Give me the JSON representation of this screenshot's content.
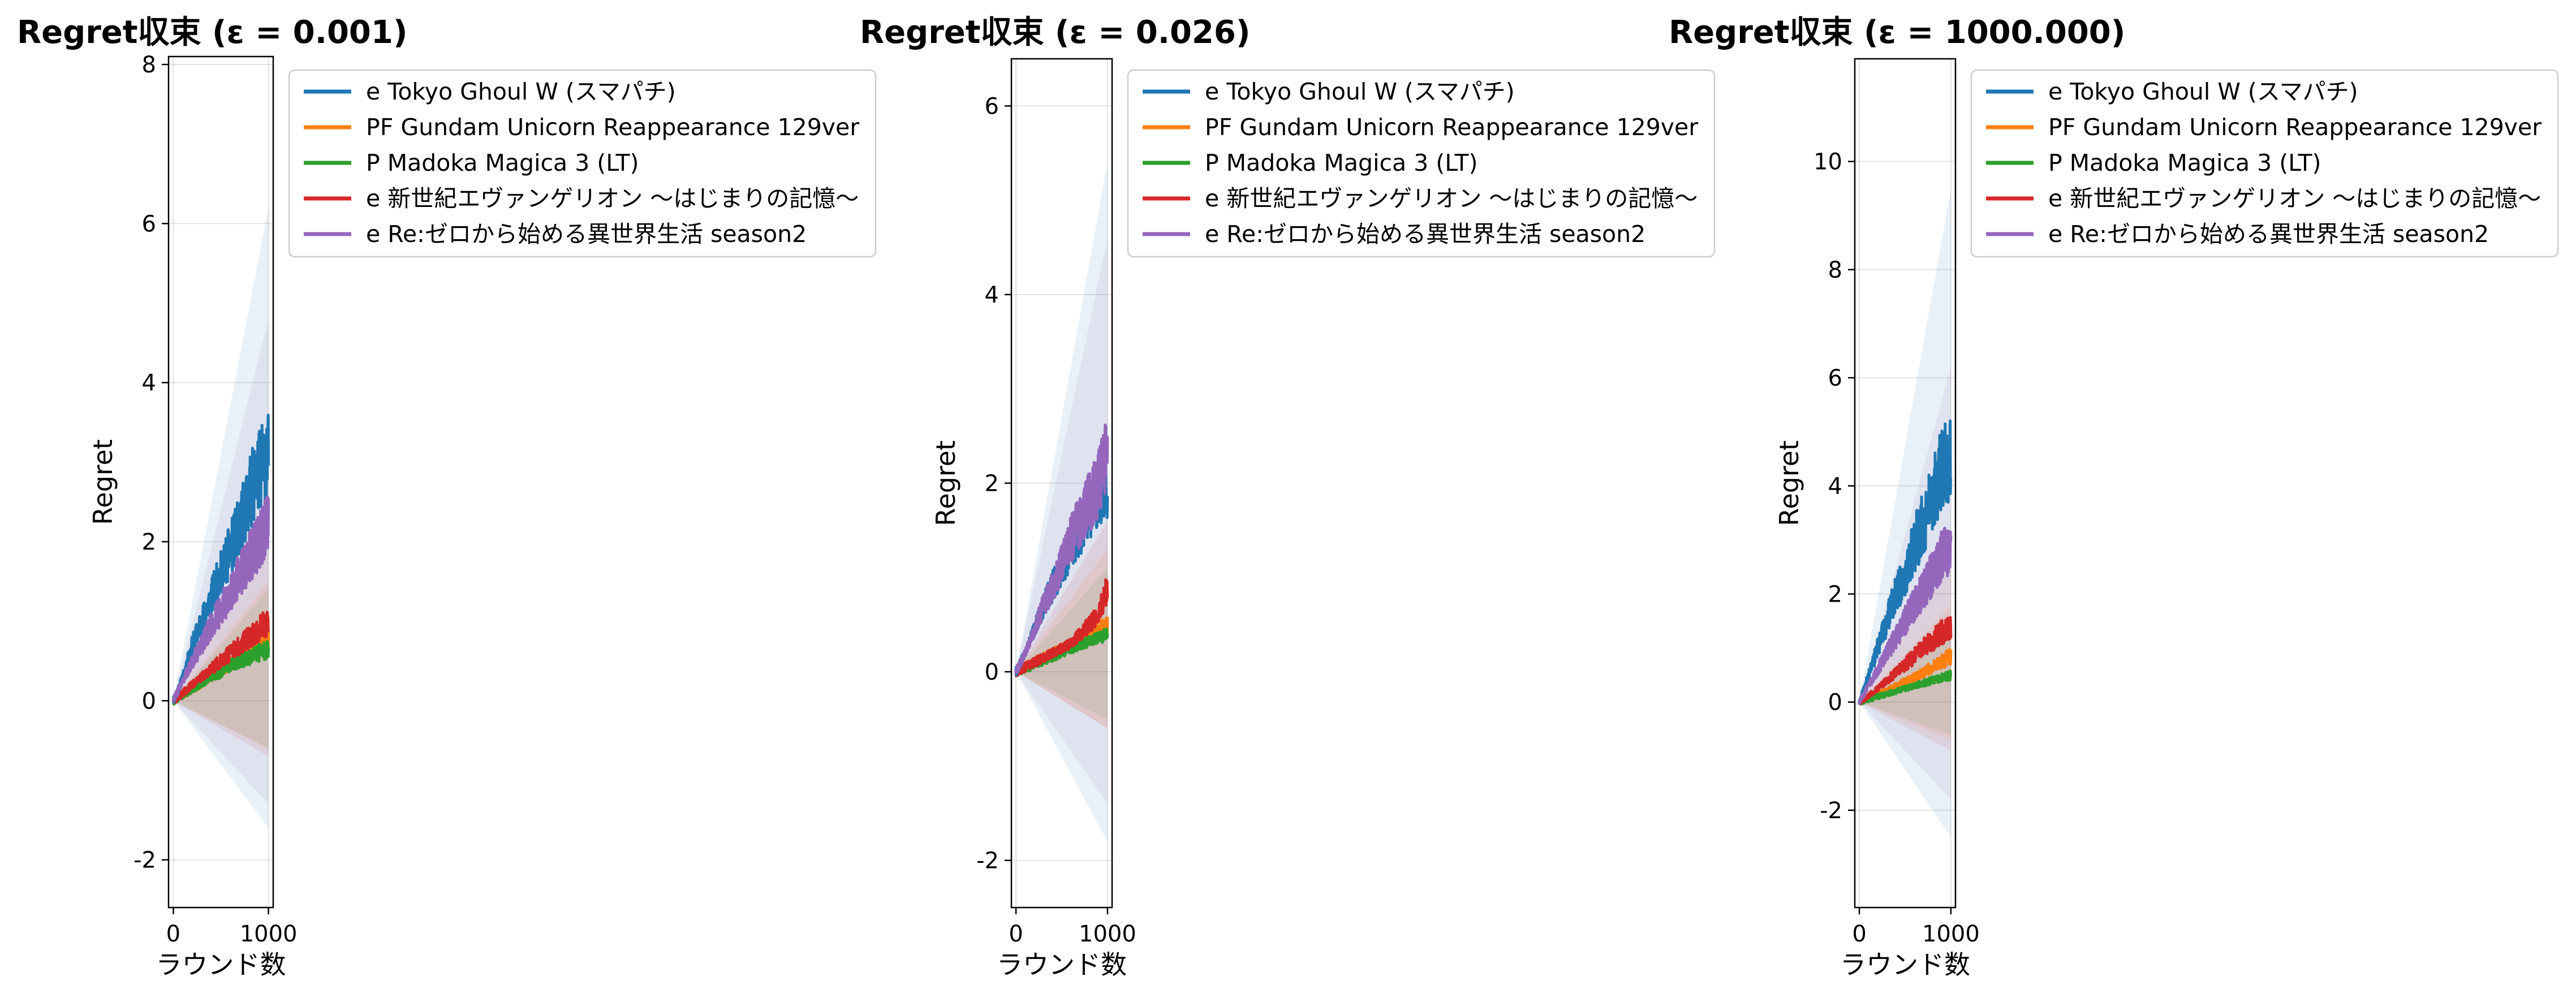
{
  "chart_data": [
    {
      "type": "line",
      "title": "Regret収束 (ε = 0.001)",
      "xlabel": "ラウンド数",
      "ylabel": "Regret",
      "xlim": [
        -50,
        1050
      ],
      "ylim": [
        -2.6,
        8.1
      ],
      "xticks": [
        0,
        1000
      ],
      "xtick_labels": [
        "0",
        "1000"
      ],
      "yticks": [
        -2,
        0,
        2,
        4,
        6,
        8
      ],
      "ytick_labels": [
        "-2",
        "0",
        "2",
        "4",
        "6",
        "8"
      ],
      "grid": true,
      "legend_position": "outside upper right",
      "x": [
        0,
        100,
        200,
        300,
        400,
        500,
        600,
        700,
        800,
        900,
        1000
      ],
      "series": [
        {
          "name": "e Tokyo Ghoul W (スマパチ)",
          "color": "#1f77b4",
          "values": [
            0,
            0.3,
            0.7,
            1.0,
            1.3,
            1.6,
            1.9,
            2.2,
            2.6,
            2.9,
            3.1
          ],
          "band": [
            -1.6,
            6.2
          ]
        },
        {
          "name": "PF Gundam Unicorn Reappearance 129ver",
          "color": "#ff7f0e",
          "values": [
            0,
            0.08,
            0.15,
            0.22,
            0.3,
            0.38,
            0.45,
            0.53,
            0.6,
            0.68,
            0.75
          ],
          "band": [
            -0.6,
            1.5
          ]
        },
        {
          "name": "P Madoka Magica 3 (LT)",
          "color": "#2ca02c",
          "values": [
            0,
            0.08,
            0.15,
            0.22,
            0.3,
            0.35,
            0.45,
            0.5,
            0.55,
            0.6,
            0.65
          ],
          "band": [
            -0.6,
            1.4
          ]
        },
        {
          "name": "e 新世紀エヴァンゲリオン 〜はじまりの記憶〜",
          "color": "#d62728",
          "values": [
            0,
            0.1,
            0.2,
            0.3,
            0.4,
            0.5,
            0.6,
            0.7,
            0.8,
            0.9,
            1.0
          ],
          "band": [
            -0.7,
            2.0
          ]
        },
        {
          "name": "e Re:ゼロから始める異世界生活 season2",
          "color": "#9467bd",
          "values": [
            0,
            0.25,
            0.5,
            0.7,
            0.95,
            1.15,
            1.35,
            1.6,
            1.8,
            2.0,
            2.3
          ],
          "band": [
            -1.3,
            4.8
          ]
        }
      ]
    },
    {
      "type": "line",
      "title": "Regret収束 (ε = 0.026)",
      "xlabel": "ラウンド数",
      "ylabel": "Regret",
      "xlim": [
        -50,
        1050
      ],
      "ylim": [
        -2.5,
        6.5
      ],
      "xticks": [
        0,
        1000
      ],
      "xtick_labels": [
        "0",
        "1000"
      ],
      "yticks": [
        -2,
        0,
        2,
        4,
        6
      ],
      "ytick_labels": [
        "-2",
        "0",
        "2",
        "4",
        "6"
      ],
      "grid": true,
      "legend_position": "outside upper right",
      "x": [
        0,
        100,
        200,
        300,
        400,
        500,
        600,
        700,
        800,
        900,
        1000
      ],
      "series": [
        {
          "name": "e Tokyo Ghoul W (スマパチ)",
          "color": "#1f77b4",
          "values": [
            0,
            0.2,
            0.45,
            0.7,
            0.9,
            1.1,
            1.3,
            1.5,
            1.7,
            1.85,
            2.0
          ],
          "band": [
            -1.8,
            5.4
          ]
        },
        {
          "name": "PF Gundam Unicorn Reappearance 129ver",
          "color": "#ff7f0e",
          "values": [
            0,
            0.05,
            0.1,
            0.15,
            0.2,
            0.25,
            0.3,
            0.35,
            0.4,
            0.45,
            0.5
          ],
          "band": [
            -0.6,
            1.3
          ]
        },
        {
          "name": "P Madoka Magica 3 (LT)",
          "color": "#2ca02c",
          "values": [
            0,
            0.04,
            0.08,
            0.12,
            0.16,
            0.2,
            0.24,
            0.28,
            0.32,
            0.36,
            0.4
          ],
          "band": [
            -0.5,
            1.1
          ]
        },
        {
          "name": "e 新世紀エヴァンゲリオン 〜はじまりの記憶〜",
          "color": "#d62728",
          "values": [
            0,
            0.05,
            0.1,
            0.15,
            0.2,
            0.25,
            0.3,
            0.4,
            0.5,
            0.6,
            0.9
          ],
          "band": [
            -0.6,
            1.6
          ]
        },
        {
          "name": "e Re:ゼロから始める異世界生活 season2",
          "color": "#9467bd",
          "values": [
            0,
            0.2,
            0.45,
            0.7,
            0.9,
            1.15,
            1.4,
            1.6,
            1.8,
            2.0,
            2.3
          ],
          "band": [
            -1.4,
            4.6
          ]
        }
      ]
    },
    {
      "type": "line",
      "title": "Regret収束 (ε = 1000.000)",
      "xlabel": "ラウンド数",
      "ylabel": "Regret",
      "xlim": [
        -50,
        1050
      ],
      "ylim": [
        -3.8,
        11.9
      ],
      "xticks": [
        0,
        1000
      ],
      "xtick_labels": [
        "0",
        "1000"
      ],
      "yticks": [
        -2,
        0,
        2,
        4,
        6,
        8,
        10
      ],
      "ytick_labels": [
        "-2",
        "0",
        "2",
        "4",
        "6",
        "8",
        "10"
      ],
      "grid": true,
      "legend_position": "outside upper right",
      "x": [
        0,
        100,
        200,
        300,
        400,
        500,
        600,
        700,
        800,
        900,
        1000
      ],
      "series": [
        {
          "name": "e Tokyo Ghoul W (スマパチ)",
          "color": "#1f77b4",
          "values": [
            0,
            0.5,
            1.0,
            1.5,
            2.0,
            2.4,
            2.9,
            3.3,
            3.8,
            4.3,
            4.5
          ],
          "band": [
            -2.5,
            9.5
          ]
        },
        {
          "name": "PF Gundam Unicorn Reappearance 129ver",
          "color": "#ff7f0e",
          "values": [
            0,
            0.08,
            0.15,
            0.22,
            0.3,
            0.38,
            0.45,
            0.55,
            0.65,
            0.75,
            0.85
          ],
          "band": [
            -0.7,
            1.8
          ]
        },
        {
          "name": "P Madoka Magica 3 (LT)",
          "color": "#2ca02c",
          "values": [
            0,
            0.05,
            0.1,
            0.15,
            0.2,
            0.25,
            0.3,
            0.35,
            0.4,
            0.45,
            0.5
          ],
          "band": [
            -0.6,
            1.3
          ]
        },
        {
          "name": "e 新世紀エヴァンゲリオン 〜はじまりの記憶〜",
          "color": "#d62728",
          "values": [
            0,
            0.12,
            0.25,
            0.4,
            0.55,
            0.7,
            0.85,
            1.0,
            1.15,
            1.3,
            1.4
          ],
          "band": [
            -0.9,
            2.8
          ]
        },
        {
          "name": "e Re:ゼロから始める異世界生活 season2",
          "color": "#9467bd",
          "values": [
            0,
            0.3,
            0.6,
            0.9,
            1.2,
            1.5,
            1.8,
            2.1,
            2.4,
            2.7,
            2.9
          ],
          "band": [
            -1.8,
            6.2
          ]
        }
      ]
    }
  ]
}
